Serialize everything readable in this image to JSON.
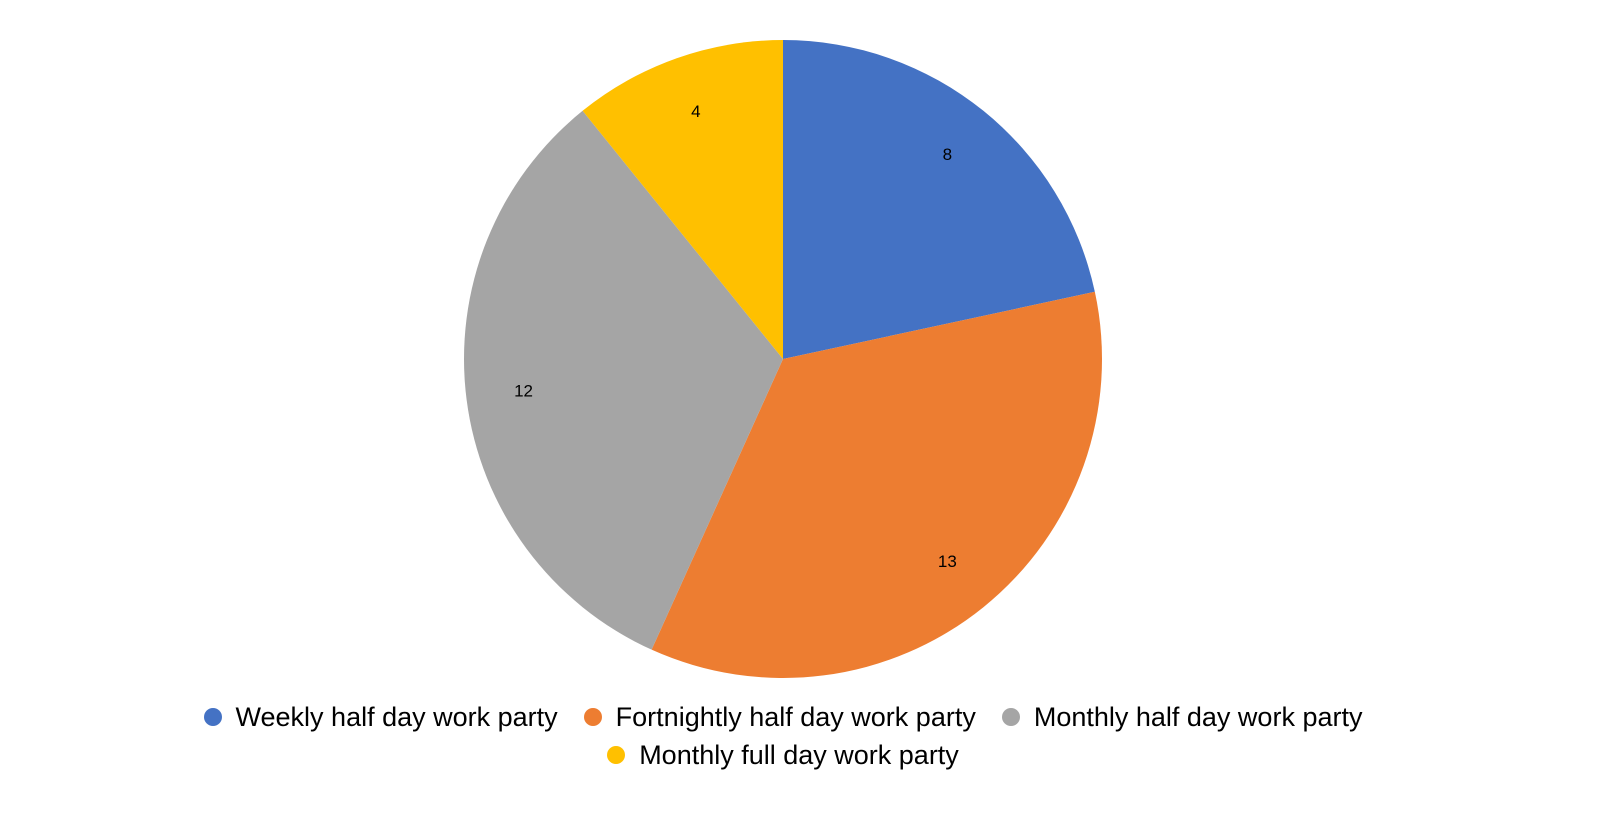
{
  "chart_data": {
    "type": "pie",
    "categories": [
      "Weekly half day work party",
      "Fortnightly half day work party",
      "Monthly half day work party",
      "Monthly full day work party"
    ],
    "values": [
      8,
      13,
      12,
      4
    ],
    "colors": [
      "#4472c4",
      "#ed7d31",
      "#a5a5a5",
      "#ffc000"
    ],
    "legend": "bottom"
  }
}
